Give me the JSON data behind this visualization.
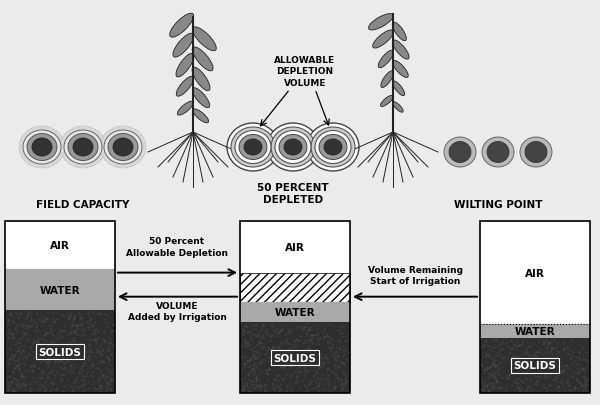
{
  "bg_color": "#f0f0f0",
  "field_capacity_label": "FIELD CAPACITY",
  "wilting_point_label": "WILTING POINT",
  "fifty_percent_label": "50 PERCENT\nDEPLETED",
  "allowable_label": "ALLOWABLE\nDEPLETION\nVOLUME",
  "arrow1_label": "50 Percent\nAllowable Depletion",
  "arrow2_label": "VOLUME\nAdded by Irrigation",
  "arrow3_label": "Volume Remaining\nStart of Irrigation",
  "box1_air": "AIR",
  "box1_water": "WATER",
  "box1_solids": "SOLIDS",
  "box2_air": "AIR",
  "box2_water": "WATER",
  "box2_solids": "SOLIDS",
  "box3_air": "AIR",
  "box3_water": "WATER",
  "box3_solids": "SOLIDS",
  "colors": {
    "bg": "#ebebeb",
    "white": "#ffffff",
    "light_gray": "#cccccc",
    "med_gray": "#aaaaaa",
    "dark_gray": "#555555",
    "very_dark": "#2a2a2a",
    "black": "#000000",
    "solids_dark": "#3a3a3a",
    "solids_texture": "#555555",
    "water_gray": "#aaaaaa",
    "hatch_color": "#333333"
  },
  "fig_w": 6.0,
  "fig_h": 4.06,
  "dpi": 100
}
